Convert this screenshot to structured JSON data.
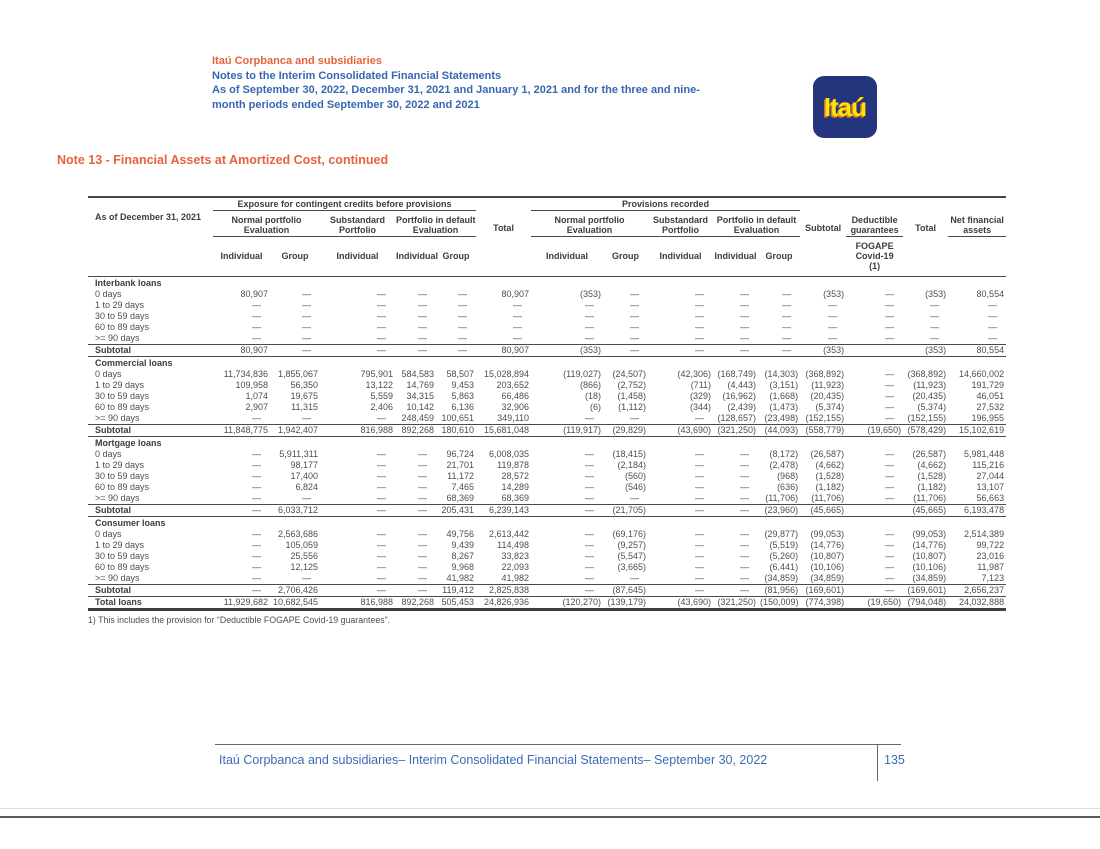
{
  "colors": {
    "accent_orange": "#E8633B",
    "heading_blue": "#3767B1",
    "logo_navy": "#24357E",
    "logo_yellow": "#FFE500",
    "table_text": "#4e4e4e"
  },
  "header": {
    "company": "Itaú Corpbanca and subsidiaries",
    "line1": "Notes to the Interim Consolidated Financial Statements",
    "line2": "As of September 30, 2022, December 31, 2021 and January 1, 2021 and for the three and nine-",
    "line3": "month periods ended September 30, 2022 and 2021",
    "logo_text": "Itaú"
  },
  "note_title": "Note 13 - Financial Assets at Amortized Cost, continued",
  "table": {
    "corner_label": "As of December 31, 2021",
    "group_headers": [
      "Exposure for contingent credits before provisions",
      "Provisions recorded"
    ],
    "row_b": [
      {
        "text": "Normal portfolio\nEvaluation",
        "span": 2,
        "u": true
      },
      {
        "text": "Substandard\nPortfolio",
        "span": 1,
        "u": true
      },
      {
        "text": "Portfolio in default\nEvaluation",
        "span": 2,
        "u": true
      },
      {
        "text": "Total",
        "span": 1,
        "u": false
      },
      {
        "text": "Normal portfolio\nEvaluation",
        "span": 2,
        "u": true
      },
      {
        "text": "Substandard\nPortfolio",
        "span": 1,
        "u": true
      },
      {
        "text": "Portfolio in default\nEvaluation",
        "span": 2,
        "u": true
      },
      {
        "text": "Subtotal",
        "span": 1,
        "u": false
      },
      {
        "text": "Deductible\nguarantees",
        "span": 1,
        "u": true
      },
      {
        "text": "Total",
        "span": 1,
        "u": false
      },
      {
        "text": "Net financial\nassets",
        "span": 1,
        "u": true
      }
    ],
    "row_c": [
      "Individual",
      "Group",
      "Individual",
      "Individual",
      "Group",
      "",
      "Individual",
      "Group",
      "Individual",
      "Individual",
      "Group",
      "",
      "FOGAPE\nCovid-19\n(1)",
      "",
      ""
    ],
    "sections": [
      {
        "title": "Interbank loans",
        "rows": [
          {
            "label": "0 days",
            "values": [
              "80,907",
              "—",
              "—",
              "—",
              "—",
              "80,907",
              "(353)",
              "—",
              "—",
              "—",
              "—",
              "(353)",
              "—",
              "(353)",
              "80,554"
            ]
          },
          {
            "label": "1 to 29 days",
            "values": [
              "—",
              "—",
              "—",
              "—",
              "—",
              "—",
              "—",
              "—",
              "—",
              "—",
              "—",
              "—",
              "—",
              "—",
              "—"
            ]
          },
          {
            "label": "30 to 59 days",
            "values": [
              "—",
              "—",
              "—",
              "—",
              "—",
              "—",
              "—",
              "—",
              "—",
              "—",
              "—",
              "—",
              "—",
              "—",
              "—"
            ]
          },
          {
            "label": "60 to 89 days",
            "values": [
              "—",
              "—",
              "—",
              "—",
              "—",
              "—",
              "—",
              "—",
              "—",
              "—",
              "—",
              "—",
              "—",
              "—",
              "—"
            ]
          },
          {
            "label": ">= 90 days",
            "values": [
              "—",
              "—",
              "—",
              "—",
              "—",
              "—",
              "—",
              "—",
              "—",
              "—",
              "—",
              "—",
              "—",
              "—",
              "—"
            ]
          }
        ],
        "subtotal": {
          "label": "Subtotal",
          "values": [
            "80,907",
            "—",
            "—",
            "—",
            "—",
            "80,907",
            "(353)",
            "—",
            "—",
            "—",
            "—",
            "(353)",
            "",
            "(353)",
            "80,554"
          ]
        }
      },
      {
        "title": "Commercial loans",
        "rows": [
          {
            "label": "0 days",
            "values": [
              "11,734,836",
              "1,855,067",
              "795,901",
              "584,583",
              "58,507",
              "15,028,894",
              "(119,027)",
              "(24,507)",
              "(42,306)",
              "(168,749)",
              "(14,303)",
              "(368,892)",
              "—",
              "(368,892)",
              "14,660,002"
            ]
          },
          {
            "label": "1 to 29 days",
            "values": [
              "109,958",
              "56,350",
              "13,122",
              "14,769",
              "9,453",
              "203,652",
              "(866)",
              "(2,752)",
              "(711)",
              "(4,443)",
              "(3,151)",
              "(11,923)",
              "—",
              "(11,923)",
              "191,729"
            ]
          },
          {
            "label": "30 to 59 days",
            "values": [
              "1,074",
              "19,675",
              "5,559",
              "34,315",
              "5,863",
              "66,486",
              "(18)",
              "(1,458)",
              "(329)",
              "(16,962)",
              "(1,668)",
              "(20,435)",
              "—",
              "(20,435)",
              "46,051"
            ]
          },
          {
            "label": "60 to 89 days",
            "values": [
              "2,907",
              "11,315",
              "2,406",
              "10,142",
              "6,136",
              "32,906",
              "(6)",
              "(1,112)",
              "(344)",
              "(2,439)",
              "(1,473)",
              "(5,374)",
              "—",
              "(5,374)",
              "27,532"
            ]
          },
          {
            "label": ">= 90 days",
            "values": [
              "—",
              "—",
              "—",
              "248,459",
              "100,651",
              "349,110",
              "—",
              "—",
              "—",
              "(128,657)",
              "(23,498)",
              "(152,155)",
              "—",
              "(152,155)",
              "196,955"
            ]
          }
        ],
        "subtotal": {
          "label": "Subtotal",
          "values": [
            "11,848,775",
            "1,942,407",
            "816,988",
            "892,268",
            "180,610",
            "15,681,048",
            "(119,917)",
            "(29,829)",
            "(43,690)",
            "(321,250)",
            "(44,093)",
            "(558,779)",
            "(19,650)",
            "(578,429)",
            "15,102,619"
          ]
        }
      },
      {
        "title": "Mortgage loans",
        "rows": [
          {
            "label": "0 days",
            "values": [
              "—",
              "5,911,311",
              "—",
              "—",
              "96,724",
              "6,008,035",
              "—",
              "(18,415)",
              "—",
              "—",
              "(8,172)",
              "(26,587)",
              "—",
              "(26,587)",
              "5,981,448"
            ]
          },
          {
            "label": "1 to 29 days",
            "values": [
              "—",
              "98,177",
              "—",
              "—",
              "21,701",
              "119,878",
              "—",
              "(2,184)",
              "—",
              "—",
              "(2,478)",
              "(4,662)",
              "—",
              "(4,662)",
              "115,216"
            ]
          },
          {
            "label": "30 to 59 days",
            "values": [
              "—",
              "17,400",
              "—",
              "—",
              "11,172",
              "28,572",
              "—",
              "(560)",
              "—",
              "—",
              "(968)",
              "(1,528)",
              "—",
              "(1,528)",
              "27,044"
            ]
          },
          {
            "label": "60 to 89 days",
            "values": [
              "—",
              "6,824",
              "—",
              "—",
              "7,465",
              "14,289",
              "—",
              "(546)",
              "—",
              "—",
              "(636)",
              "(1,182)",
              "—",
              "(1,182)",
              "13,107"
            ]
          },
          {
            "label": ">= 90 days",
            "values": [
              "—",
              "—",
              "—",
              "—",
              "68,369",
              "68,369",
              "—",
              "—",
              "—",
              "—",
              "(11,706)",
              "(11,706)",
              "—",
              "(11,706)",
              "56,663"
            ]
          }
        ],
        "subtotal": {
          "label": "Subtotal",
          "values": [
            "—",
            "6,033,712",
            "—",
            "—",
            "205,431",
            "6,239,143",
            "—",
            "(21,705)",
            "—",
            "—",
            "(23,960)",
            "(45,665)",
            "",
            "(45,665)",
            "6,193,478"
          ]
        }
      },
      {
        "title": "Consumer loans",
        "rows": [
          {
            "label": "0 days",
            "values": [
              "—",
              "2,563,686",
              "—",
              "—",
              "49,756",
              "2,613,442",
              "—",
              "(69,176)",
              "—",
              "—",
              "(29,877)",
              "(99,053)",
              "—",
              "(99,053)",
              "2,514,389"
            ]
          },
          {
            "label": "1 to 29 days",
            "values": [
              "—",
              "105,059",
              "—",
              "—",
              "9,439",
              "114,498",
              "—",
              "(9,257)",
              "—",
              "—",
              "(5,519)",
              "(14,776)",
              "—",
              "(14,776)",
              "99,722"
            ]
          },
          {
            "label": "30 to 59 days",
            "values": [
              "—",
              "25,556",
              "—",
              "—",
              "8,267",
              "33,823",
              "—",
              "(5,547)",
              "—",
              "—",
              "(5,260)",
              "(10,807)",
              "—",
              "(10,807)",
              "23,016"
            ]
          },
          {
            "label": "60 to 89 days",
            "values": [
              "—",
              "12,125",
              "—",
              "—",
              "9,968",
              "22,093",
              "—",
              "(3,665)",
              "—",
              "—",
              "(6,441)",
              "(10,106)",
              "—",
              "(10,106)",
              "11,987"
            ]
          },
          {
            "label": ">= 90 days",
            "values": [
              "—",
              "—",
              "—",
              "—",
              "41,982",
              "41,982",
              "—",
              "—",
              "—",
              "—",
              "(34,859)",
              "(34,859)",
              "—",
              "(34,859)",
              "7,123"
            ]
          }
        ],
        "subtotal": {
          "label": "Subtotal",
          "values": [
            "—",
            "2,706,426",
            "—",
            "—",
            "119,412",
            "2,825,838",
            "—",
            "(87,645)",
            "—",
            "—",
            "(81,956)",
            "(169,601)",
            "—",
            "(169,601)",
            "2,656,237"
          ]
        }
      }
    ],
    "total_row": {
      "label": "Total loans",
      "values": [
        "11,929,682",
        "10,682,545",
        "816,988",
        "892,268",
        "505,453",
        "24,826,936",
        "(120,270)",
        "(139,179)",
        "(43,690)",
        "(321,250)",
        "(150,009)",
        "(774,398)",
        "(19,650)",
        "(794,048)",
        "24,032,888"
      ]
    }
  },
  "footnote": "1) This includes the provision for “Deductible FOGAPE Covid-19 guarantees”.",
  "footer": {
    "text": "Itaú Corpbanca and subsidiaries– Interim Consolidated Financial Statements– September 30, 2022",
    "page_number": "135"
  }
}
